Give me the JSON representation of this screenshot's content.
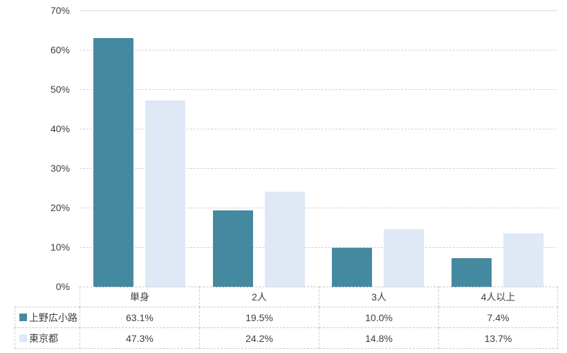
{
  "chart_data": {
    "type": "bar",
    "title": "",
    "xlabel": "",
    "ylabel": "",
    "categories": [
      "単身",
      "2人",
      "3人",
      "4人以上"
    ],
    "series": [
      {
        "name": "上野広小路",
        "color": "#4589A0",
        "values": [
          63.1,
          19.5,
          10.0,
          7.4
        ],
        "values_fmt": [
          "63.1%",
          "19.5%",
          "10.0%",
          "7.4%"
        ]
      },
      {
        "name": "東京都",
        "color": "#DEE9F5",
        "values": [
          47.3,
          24.2,
          14.8,
          13.7
        ],
        "values_fmt": [
          "47.3%",
          "24.2%",
          "14.8%",
          "13.7%"
        ]
      }
    ],
    "ylim": [
      0,
      70
    ],
    "ytick_step": 10,
    "ytick_labels": [
      "0%",
      "10%",
      "20%",
      "30%",
      "40%",
      "50%",
      "60%",
      "70%"
    ],
    "grid": "horizontal-dashed",
    "legend_position": "table-left",
    "gridline_color": "#D2D2D2",
    "text_color": "#3D3D3D"
  }
}
